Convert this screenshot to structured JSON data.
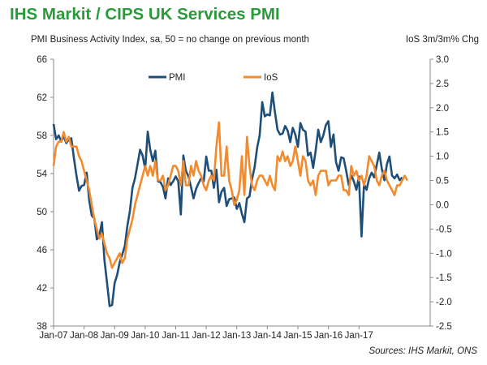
{
  "chart_data": {
    "type": "line",
    "title": "IHS Markit / CIPS UK Services PMI",
    "left_axis_label": "PMI Business Activity Index, sa, 50 = no change on previous month",
    "right_axis_label": "IoS 3m/3m% Chg",
    "source": "Sources: IHS Markit, ONS",
    "x_ticks": [
      "Jan-07",
      "Jan-08",
      "Jan-09",
      "Jan-10",
      "Jan-11",
      "Jan-12",
      "Jan-13",
      "Jan-14",
      "Jan-15",
      "Jan-16",
      "Jan-17"
    ],
    "left_ylim": [
      38,
      66
    ],
    "left_ticks": [
      "38",
      "42",
      "46",
      "50",
      "54",
      "58",
      "62",
      "66"
    ],
    "right_ylim": [
      -2.5,
      3.0
    ],
    "right_ticks": [
      "-2.5",
      "-2.0",
      "-1.5",
      "-1.0",
      "-0.5",
      "0.0",
      "0.5",
      "1.0",
      "1.5",
      "2.0",
      "2.5",
      "3.0"
    ],
    "legend": [
      "PMI",
      "IoS"
    ],
    "series": [
      {
        "name": "PMI",
        "axis": "left",
        "color": "#1f4e79",
        "start": "2007-01",
        "values": [
          59.2,
          57.6,
          58.0,
          57.4,
          57.9,
          57.2,
          57.6,
          57.7,
          55.6,
          53.8,
          52.2,
          52.7,
          52.8,
          54.1,
          51.2,
          49.6,
          49.3,
          47.1,
          47.5,
          48.9,
          44.9,
          42.6,
          40.1,
          40.2,
          42.5,
          43.4,
          44.7,
          45.5,
          46.4,
          48.5,
          50.1,
          52.5,
          53.5,
          55.0,
          56.5,
          55.9,
          54.5,
          58.4,
          56.5,
          55.3,
          56.4,
          53.2,
          53.1,
          52.6,
          51.4,
          53.5,
          52.8,
          53.2,
          53.7,
          53.2,
          49.7,
          55.9,
          54.3,
          53.7,
          52.6,
          51.4,
          52.4,
          53.0,
          53.5,
          53.2,
          55.8,
          54.3,
          54.3,
          52.5,
          54.4,
          51.0,
          52.1,
          52.5,
          50.6,
          51.3,
          51.4,
          51.5,
          50.3,
          50.9,
          49.8,
          48.9,
          51.4,
          51.6,
          53.4,
          54.7,
          56.7,
          58.0,
          61.5,
          60.0,
          60.2,
          60.1,
          62.5,
          60.4,
          58.6,
          58.1,
          58.2,
          59.0,
          58.5,
          57.3,
          58.8,
          58.1,
          56.8,
          59.3,
          58.6,
          58.4,
          55.9,
          56.2,
          54.6,
          56.4,
          58.6,
          57.3,
          58.0,
          59.1,
          59.5,
          56.8,
          58.1,
          55.2,
          54.3,
          55.7,
          55.6,
          54.3,
          52.8,
          53.8,
          53.2,
          52.3,
          53.7,
          47.4,
          52.9,
          52.3,
          53.5,
          54.1,
          53.6,
          54.9,
          56.2,
          54.5,
          53.3,
          55.0,
          55.8,
          53.8,
          53.5,
          53.9,
          53.3,
          53.6
        ]
      },
      {
        "name": "IoS",
        "axis": "right",
        "color": "#f28a2e",
        "start": "2007-01",
        "values": [
          0.8,
          1.2,
          1.3,
          1.3,
          1.5,
          1.3,
          1.4,
          1.2,
          1.2,
          1.2,
          1.0,
          0.9,
          0.7,
          0.5,
          0.3,
          0.0,
          -0.3,
          -0.5,
          -0.7,
          -0.6,
          -0.8,
          -1.0,
          -1.1,
          -1.3,
          -1.2,
          -1.1,
          -1.0,
          -1.2,
          -1.1,
          -0.7,
          -0.5,
          -0.3,
          0.0,
          0.2,
          0.4,
          0.6,
          0.8,
          0.6,
          0.8,
          0.6,
          0.9,
          0.5,
          0.5,
          0.6,
          0.3,
          0.4,
          0.6,
          0.8,
          0.8,
          0.7,
          0.4,
          0.9,
          0.4,
          0.4,
          0.8,
          0.6,
          0.9,
          0.7,
          0.6,
          0.4,
          0.3,
          0.5,
          0.6,
          0.5,
          1.2,
          1.7,
          0.6,
          0.6,
          1.2,
          0.5,
          0.3,
          0.0,
          0.1,
          0.3,
          1.0,
          0.2,
          1.4,
          0.8,
          0.4,
          0.3,
          0.5,
          0.6,
          0.6,
          0.5,
          0.4,
          0.6,
          0.4,
          0.3,
          1.0,
          0.9,
          1.1,
          0.9,
          1.0,
          0.8,
          0.9,
          1.2,
          0.9,
          0.6,
          1.0,
          0.9,
          0.5,
          0.4,
          0.5,
          0.2,
          0.6,
          0.7,
          0.7,
          0.7,
          0.4,
          0.5,
          0.5,
          0.5,
          0.6,
          0.6,
          0.3,
          0.3,
          0.2,
          0.8,
          0.6,
          0.7,
          0.5,
          0.6,
          0.4,
          0.6,
          1.0,
          0.9,
          0.8,
          0.5,
          0.4,
          0.6,
          0.7,
          0.5,
          0.4,
          0.3,
          0.2,
          0.4,
          0.4,
          0.5,
          0.6,
          0.5
        ]
      }
    ]
  }
}
